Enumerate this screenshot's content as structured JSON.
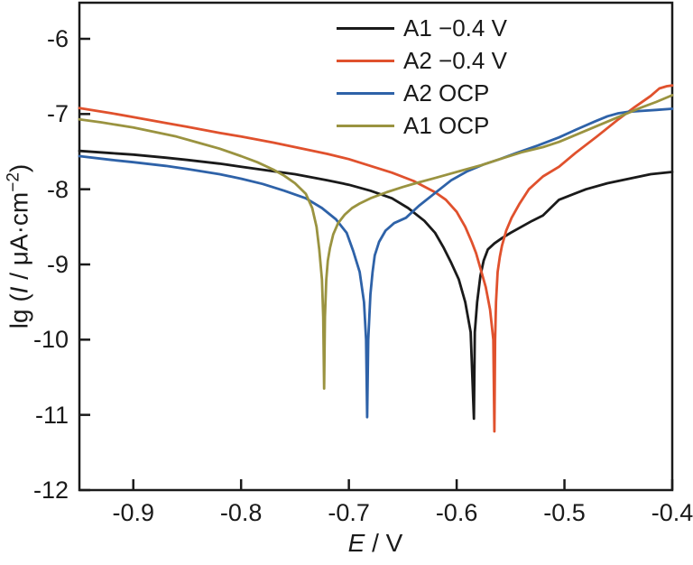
{
  "figure": {
    "background_color": "#ffffff",
    "frame_color": "#1a1a1a",
    "text_color": "#1a1a1a"
  },
  "chart_data": {
    "type": "line",
    "title": "",
    "xlabel": "E / V",
    "ylabel": "lg (I / μA·cm⁻²)",
    "xlabel_parts": {
      "var": "E",
      "rest": " / V"
    },
    "ylabel_parts": {
      "prefix": "lg (",
      "var": "I",
      "mid": " / μA·cm",
      "sup": "−2",
      "close": ")"
    },
    "xlim": [
      -0.95,
      -0.4
    ],
    "ylim": [
      -12,
      -5.52
    ],
    "grid": false,
    "legend_position": "top-center-inside",
    "x_ticks": {
      "values": [
        -0.9,
        -0.8,
        -0.7,
        -0.6,
        -0.5,
        -0.4
      ],
      "labels": [
        "-0.9",
        "-0.8",
        "-0.7",
        "-0.6",
        "-0.5",
        "-0.4"
      ]
    },
    "y_ticks": {
      "values": [
        -6,
        -7,
        -8,
        -9,
        -10,
        -11,
        -12
      ],
      "labels": [
        "-6",
        "-7",
        "-8",
        "-9",
        "-10",
        "-11",
        "-12"
      ]
    },
    "series": [
      {
        "name": "A1 −0.4 V",
        "color": "#1a1a1a",
        "corrosion_potential_V": -0.584,
        "min_lg_current": -11.05,
        "points": [
          [
            -0.95,
            -7.49
          ],
          [
            -0.92,
            -7.52
          ],
          [
            -0.9,
            -7.54
          ],
          [
            -0.87,
            -7.58
          ],
          [
            -0.85,
            -7.61
          ],
          [
            -0.82,
            -7.66
          ],
          [
            -0.8,
            -7.7
          ],
          [
            -0.77,
            -7.76
          ],
          [
            -0.75,
            -7.8
          ],
          [
            -0.72,
            -7.88
          ],
          [
            -0.7,
            -7.94
          ],
          [
            -0.68,
            -8.02
          ],
          [
            -0.66,
            -8.12
          ],
          [
            -0.645,
            -8.25
          ],
          [
            -0.63,
            -8.42
          ],
          [
            -0.62,
            -8.58
          ],
          [
            -0.612,
            -8.78
          ],
          [
            -0.605,
            -8.98
          ],
          [
            -0.598,
            -9.2
          ],
          [
            -0.592,
            -9.5
          ],
          [
            -0.587,
            -9.9
          ],
          [
            -0.584,
            -11.05
          ],
          [
            -0.5832,
            -9.9
          ],
          [
            -0.581,
            -9.5
          ],
          [
            -0.578,
            -9.15
          ],
          [
            -0.575,
            -8.95
          ],
          [
            -0.571,
            -8.8
          ],
          [
            -0.565,
            -8.72
          ],
          [
            -0.558,
            -8.65
          ],
          [
            -0.55,
            -8.58
          ],
          [
            -0.54,
            -8.5
          ],
          [
            -0.53,
            -8.42
          ],
          [
            -0.52,
            -8.35
          ],
          [
            -0.505,
            -8.14
          ],
          [
            -0.48,
            -8.0
          ],
          [
            -0.46,
            -7.92
          ],
          [
            -0.44,
            -7.86
          ],
          [
            -0.42,
            -7.8
          ],
          [
            -0.4,
            -7.77
          ]
        ]
      },
      {
        "name": "A2 −0.4 V",
        "color": "#e0512d",
        "corrosion_potential_V": -0.565,
        "min_lg_current": -11.22,
        "points": [
          [
            -0.95,
            -6.92
          ],
          [
            -0.92,
            -6.99
          ],
          [
            -0.9,
            -7.04
          ],
          [
            -0.87,
            -7.12
          ],
          [
            -0.85,
            -7.17
          ],
          [
            -0.82,
            -7.25
          ],
          [
            -0.8,
            -7.3
          ],
          [
            -0.77,
            -7.38
          ],
          [
            -0.75,
            -7.44
          ],
          [
            -0.72,
            -7.53
          ],
          [
            -0.7,
            -7.6
          ],
          [
            -0.68,
            -7.69
          ],
          [
            -0.66,
            -7.78
          ],
          [
            -0.64,
            -7.89
          ],
          [
            -0.62,
            -8.04
          ],
          [
            -0.61,
            -8.14
          ],
          [
            -0.6,
            -8.3
          ],
          [
            -0.592,
            -8.5
          ],
          [
            -0.586,
            -8.7
          ],
          [
            -0.582,
            -8.85
          ],
          [
            -0.578,
            -9.05
          ],
          [
            -0.573,
            -9.3
          ],
          [
            -0.569,
            -9.6
          ],
          [
            -0.566,
            -10.0
          ],
          [
            -0.565,
            -11.22
          ],
          [
            -0.5643,
            -10.0
          ],
          [
            -0.5635,
            -9.5
          ],
          [
            -0.562,
            -9.1
          ],
          [
            -0.56,
            -8.9
          ],
          [
            -0.558,
            -8.75
          ],
          [
            -0.554,
            -8.55
          ],
          [
            -0.549,
            -8.38
          ],
          [
            -0.542,
            -8.2
          ],
          [
            -0.533,
            -8.0
          ],
          [
            -0.52,
            -7.83
          ],
          [
            -0.505,
            -7.7
          ],
          [
            -0.49,
            -7.52
          ],
          [
            -0.47,
            -7.3
          ],
          [
            -0.45,
            -7.07
          ],
          [
            -0.435,
            -6.91
          ],
          [
            -0.42,
            -6.76
          ],
          [
            -0.412,
            -6.66
          ],
          [
            -0.405,
            -6.63
          ],
          [
            -0.4,
            -6.62
          ]
        ]
      },
      {
        "name": "A2 OCP",
        "color": "#2e62a8",
        "corrosion_potential_V": -0.683,
        "min_lg_current": -11.03,
        "points": [
          [
            -0.95,
            -7.56
          ],
          [
            -0.92,
            -7.61
          ],
          [
            -0.9,
            -7.64
          ],
          [
            -0.87,
            -7.69
          ],
          [
            -0.85,
            -7.73
          ],
          [
            -0.82,
            -7.8
          ],
          [
            -0.8,
            -7.86
          ],
          [
            -0.78,
            -7.93
          ],
          [
            -0.76,
            -8.02
          ],
          [
            -0.74,
            -8.12
          ],
          [
            -0.725,
            -8.25
          ],
          [
            -0.712,
            -8.4
          ],
          [
            -0.702,
            -8.58
          ],
          [
            -0.696,
            -8.82
          ],
          [
            -0.69,
            -9.1
          ],
          [
            -0.686,
            -9.5
          ],
          [
            -0.684,
            -10.0
          ],
          [
            -0.683,
            -11.03
          ],
          [
            -0.682,
            -10.0
          ],
          [
            -0.68,
            -9.4
          ],
          [
            -0.678,
            -9.1
          ],
          [
            -0.676,
            -8.88
          ],
          [
            -0.672,
            -8.7
          ],
          [
            -0.666,
            -8.55
          ],
          [
            -0.658,
            -8.45
          ],
          [
            -0.647,
            -8.38
          ],
          [
            -0.635,
            -8.22
          ],
          [
            -0.62,
            -8.05
          ],
          [
            -0.605,
            -7.88
          ],
          [
            -0.59,
            -7.76
          ],
          [
            -0.575,
            -7.67
          ],
          [
            -0.56,
            -7.6
          ],
          [
            -0.545,
            -7.52
          ],
          [
            -0.525,
            -7.42
          ],
          [
            -0.505,
            -7.31
          ],
          [
            -0.488,
            -7.2
          ],
          [
            -0.472,
            -7.1
          ],
          [
            -0.46,
            -7.03
          ],
          [
            -0.45,
            -6.99
          ],
          [
            -0.44,
            -6.97
          ],
          [
            -0.43,
            -6.96
          ],
          [
            -0.415,
            -6.945
          ],
          [
            -0.4,
            -6.93
          ]
        ]
      },
      {
        "name": "A1 OCP",
        "color": "#9a9340",
        "corrosion_potential_V": -0.723,
        "min_lg_current": -10.65,
        "points": [
          [
            -0.95,
            -7.07
          ],
          [
            -0.93,
            -7.11
          ],
          [
            -0.9,
            -7.18
          ],
          [
            -0.88,
            -7.24
          ],
          [
            -0.86,
            -7.3
          ],
          [
            -0.84,
            -7.38
          ],
          [
            -0.82,
            -7.46
          ],
          [
            -0.8,
            -7.56
          ],
          [
            -0.785,
            -7.64
          ],
          [
            -0.77,
            -7.74
          ],
          [
            -0.76,
            -7.82
          ],
          [
            -0.75,
            -7.92
          ],
          [
            -0.74,
            -8.06
          ],
          [
            -0.734,
            -8.25
          ],
          [
            -0.73,
            -8.5
          ],
          [
            -0.7275,
            -8.8
          ],
          [
            -0.725,
            -9.2
          ],
          [
            -0.7238,
            -9.7
          ],
          [
            -0.723,
            -10.65
          ],
          [
            -0.7222,
            -9.7
          ],
          [
            -0.721,
            -9.2
          ],
          [
            -0.7195,
            -8.95
          ],
          [
            -0.7175,
            -8.78
          ],
          [
            -0.7145,
            -8.6
          ],
          [
            -0.71,
            -8.45
          ],
          [
            -0.704,
            -8.34
          ],
          [
            -0.697,
            -8.25
          ],
          [
            -0.69,
            -8.19
          ],
          [
            -0.68,
            -8.12
          ],
          [
            -0.665,
            -8.04
          ],
          [
            -0.65,
            -7.97
          ],
          [
            -0.638,
            -7.92
          ],
          [
            -0.62,
            -7.85
          ],
          [
            -0.605,
            -7.79
          ],
          [
            -0.59,
            -7.73
          ],
          [
            -0.577,
            -7.68
          ],
          [
            -0.56,
            -7.6
          ],
          [
            -0.54,
            -7.51
          ],
          [
            -0.52,
            -7.44
          ],
          [
            -0.505,
            -7.37
          ],
          [
            -0.49,
            -7.28
          ],
          [
            -0.47,
            -7.16
          ],
          [
            -0.45,
            -7.04
          ],
          [
            -0.43,
            -6.92
          ],
          [
            -0.415,
            -6.84
          ],
          [
            -0.4,
            -6.75
          ]
        ]
      }
    ]
  }
}
